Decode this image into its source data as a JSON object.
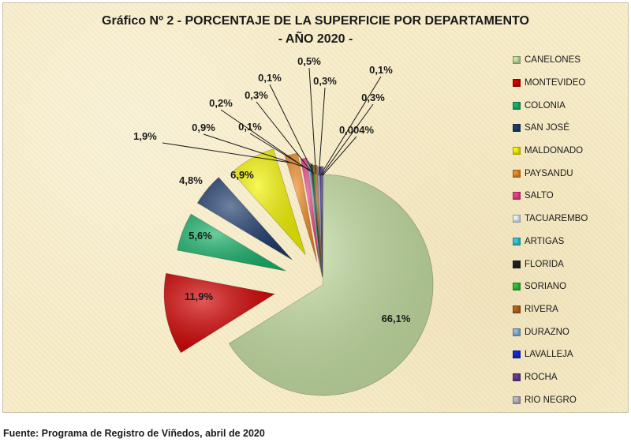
{
  "title_line1": "Gráfico Nº 2 - PORCENTAJE DE  LA SUPERFICIE POR DEPARTAMENTO",
  "title_line2": "- AÑO 2020 -",
  "source": "Fuente: Programa de Registro de Viñedos, abril de 2020",
  "chart_data": {
    "type": "pie",
    "categories": [
      "CANELONES",
      "MONTEVIDEO",
      "COLONIA",
      "SAN JOSÉ",
      "MALDONADO",
      "PAYSANDU",
      "SALTO",
      "TACUAREMBO",
      "ARTIGAS",
      "FLORIDA",
      "SORIANO",
      "RIVERA",
      "DURAZNO",
      "LAVALLEJA",
      "ROCHA",
      "RIO NEGRO"
    ],
    "values": [
      66.1,
      11.9,
      5.6,
      4.8,
      6.9,
      1.9,
      0.9,
      0.1,
      0.2,
      0.3,
      0.1,
      0.5,
      0.3,
      0.1,
      0.3,
      0.004
    ],
    "labels": [
      "66,1%",
      "11,9%",
      "5,6%",
      "4,8%",
      "6,9%",
      "1,9%",
      "0,9%",
      "0,1%",
      "0,2%",
      "0,3%",
      "0,1%",
      "0,5%",
      "0,3%",
      "0,1%",
      "0,3%",
      "0,004%"
    ],
    "colors": [
      "#c6e0a3",
      "#d40000",
      "#19b36b",
      "#1f3d6e",
      "#f5f500",
      "#f08a24",
      "#ee3f8c",
      "#e8eef5",
      "#38c8d8",
      "#222222",
      "#2fc23a",
      "#b5651d",
      "#8fb4d8",
      "#1428d8",
      "#6a3c8c",
      "#b8b8c8"
    ],
    "legend_position": "right"
  }
}
